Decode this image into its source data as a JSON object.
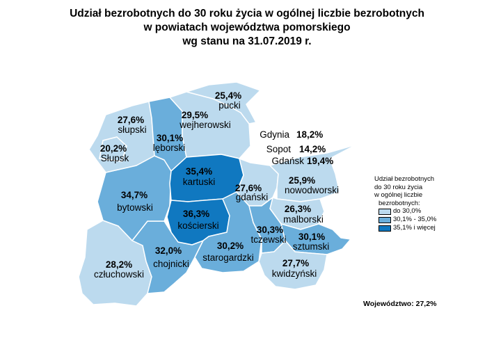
{
  "title_lines": [
    "Udział bezrobotnych do 30 roku życia w ogólnej liczbie bezrobotnych",
    "w powiatach województwa pomorskiego",
    "wg stanu na 31.07.2019 r."
  ],
  "colors": {
    "low": "#bcdaee",
    "mid": "#6aaedb",
    "high": "#1078c0",
    "border": "#ffffff",
    "background": "#ffffff"
  },
  "districts": [
    {
      "id": "pucki",
      "name": "pucki",
      "value": "25,4%",
      "cls": "low"
    },
    {
      "id": "wejherowski",
      "name": "wejherowski",
      "value": "29,5%",
      "cls": "low"
    },
    {
      "id": "slupski",
      "name": "słupski",
      "value": "27,6%",
      "cls": "low"
    },
    {
      "id": "slupsk",
      "name": "Słupsk",
      "value": "20,2%",
      "cls": "low"
    },
    {
      "id": "leborski",
      "name": "lęborski",
      "value": "30,1%",
      "cls": "mid"
    },
    {
      "id": "kartuski",
      "name": "kartuski",
      "value": "35,4%",
      "cls": "high"
    },
    {
      "id": "bytowski",
      "name": "bytowski",
      "value": "34,7%",
      "cls": "mid"
    },
    {
      "id": "koscierski",
      "name": "kościerski",
      "value": "36,3%",
      "cls": "high"
    },
    {
      "id": "gdanski",
      "name": "gdański",
      "value": "27,6%",
      "cls": "low"
    },
    {
      "id": "nowodworski",
      "name": "nowodworski",
      "value": "25,9%",
      "cls": "low"
    },
    {
      "id": "malborski",
      "name": "malborski",
      "value": "26,3%",
      "cls": "low"
    },
    {
      "id": "tczewski",
      "name": "tczewski",
      "value": "30,3%",
      "cls": "mid"
    },
    {
      "id": "sztumski",
      "name": "sztumski",
      "value": "30,1%",
      "cls": "mid"
    },
    {
      "id": "starogardzki",
      "name": "starogardzki",
      "value": "30,2%",
      "cls": "mid"
    },
    {
      "id": "chojnicki",
      "name": "chojnicki",
      "value": "32,0%",
      "cls": "mid"
    },
    {
      "id": "czluchowski",
      "name": "człuchowski",
      "value": "28,2%",
      "cls": "low"
    },
    {
      "id": "kwidzynski",
      "name": "kwidzyński",
      "value": "27,7%",
      "cls": "low"
    }
  ],
  "cities": [
    {
      "id": "gdynia",
      "name": "Gdynia",
      "value": "18,2%"
    },
    {
      "id": "sopot",
      "name": "Sopot",
      "value": "14,2%"
    },
    {
      "id": "gdansk",
      "name": "Gdańsk",
      "value": "19,4%"
    }
  ],
  "legend": {
    "title_lines": [
      "Udział bezrobotnych",
      "do 30 roku życia",
      "w ogólnej liczbie",
      "bezrobotnych:"
    ],
    "items": [
      {
        "label": "do 30,0%",
        "cls": "low"
      },
      {
        "label": "30,1% - 35,0%",
        "cls": "mid"
      },
      {
        "label": "35,1% i więcej",
        "cls": "high"
      }
    ]
  },
  "total": "Województwo: 27,2%"
}
